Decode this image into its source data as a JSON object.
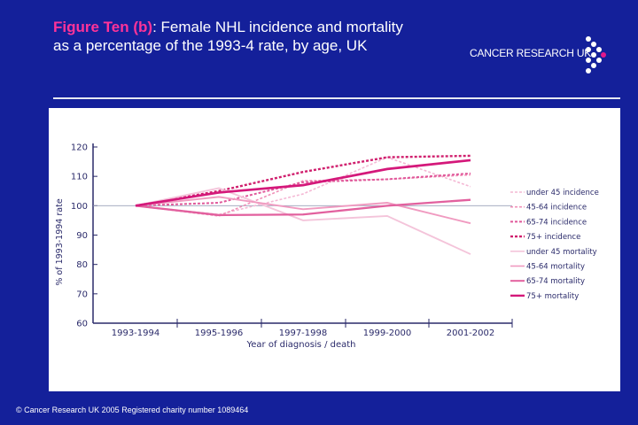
{
  "header": {
    "title_highlight": "Figure Ten (b)",
    "title_rest": ": Female NHL incidence and mortality",
    "title_line2": "as a percentage of the 1993-4 rate, by age, UK"
  },
  "logo": {
    "text": "CANCER RESEARCH UK",
    "dot_color": "#ffffff",
    "accent_dot_color": "#e0198c"
  },
  "footer": {
    "text": "© Cancer Research UK 2005  Registered charity number 1089464"
  },
  "colors": {
    "background": "#14209a",
    "title_highlight": "#ff3399"
  },
  "chart_data": {
    "type": "line",
    "xlabel": "Year of diagnosis / death",
    "ylabel": "% of 1993-1994 rate",
    "categories": [
      "1993-1994",
      "1995-1996",
      "1997-1998",
      "1999-2000",
      "2001-2002"
    ],
    "ylim": [
      60,
      120
    ],
    "yticks": [
      60,
      70,
      80,
      90,
      100,
      110,
      120
    ],
    "reference_line": 100,
    "legend_position": "right",
    "series": [
      {
        "name": "under 45 incidence",
        "style": "dotted",
        "color": "#f4b8d4",
        "values": [
          100,
          97,
          104,
          116.5,
          106.5
        ]
      },
      {
        "name": "45-64 incidence",
        "style": "dotted",
        "color": "#f090b8",
        "values": [
          100,
          96.5,
          108.5,
          109,
          110.5
        ]
      },
      {
        "name": "65-74 incidence",
        "style": "dotted",
        "color": "#e0589a",
        "values": [
          100,
          101,
          108,
          109,
          111
        ]
      },
      {
        "name": "75+ incidence",
        "style": "dotted",
        "color": "#d0206e",
        "values": [
          100,
          105,
          111.5,
          116.5,
          117
        ]
      },
      {
        "name": "under 45 mortality",
        "style": "solid",
        "color": "#f4c4da",
        "values": [
          100,
          106,
          95,
          96.5,
          83.5
        ]
      },
      {
        "name": "45-64 mortality",
        "style": "solid",
        "color": "#f09ac0",
        "values": [
          100,
          103,
          98.8,
          101,
          94
        ]
      },
      {
        "name": "65-74 mortality",
        "style": "solid",
        "color": "#e2609e",
        "values": [
          100,
          96.8,
          97,
          100,
          102
        ]
      },
      {
        "name": "75+ mortality",
        "style": "solid",
        "color": "#d4187a",
        "values": [
          100,
          104.5,
          107,
          112.5,
          115.5
        ]
      }
    ]
  }
}
